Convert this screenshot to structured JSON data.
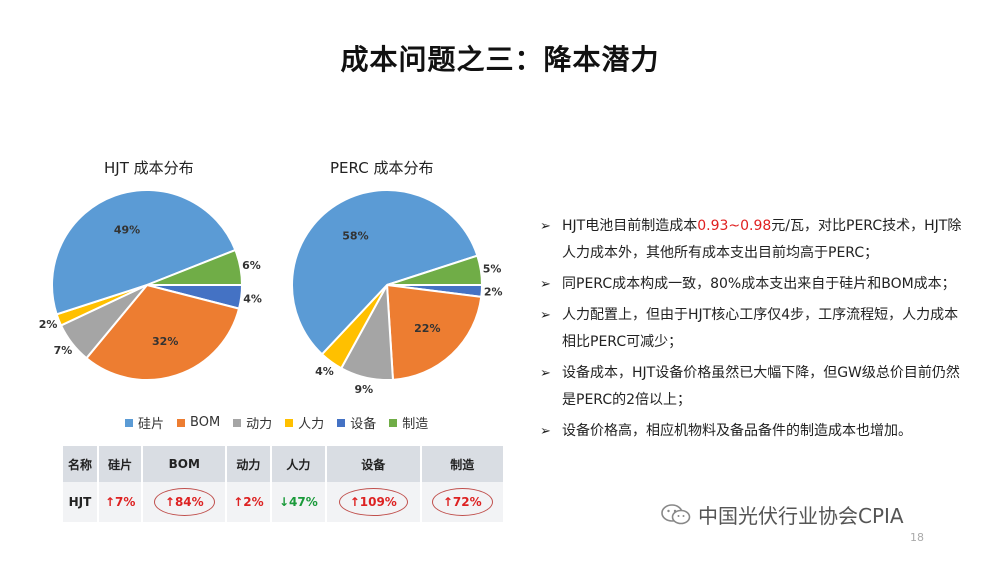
{
  "title": "成本问题之三：降本潜力",
  "colors": {
    "silicon": "#5b9bd5",
    "bom": "#ed7d31",
    "power": "#a5a5a5",
    "labor": "#ffc000",
    "equipment": "#4472c4",
    "manufacturing": "#70ad47"
  },
  "chart_data": [
    {
      "type": "pie",
      "title": "HJT 成本分布",
      "categories": [
        "硅片",
        "BOM",
        "动力",
        "人力",
        "设备",
        "制造"
      ],
      "values": [
        49,
        32,
        7,
        2,
        4,
        6
      ],
      "labels": [
        "49%",
        "32%",
        "7%",
        "2%",
        "4%",
        "6%"
      ]
    },
    {
      "type": "pie",
      "title": "PERC 成本分布",
      "categories": [
        "硅片",
        "BOM",
        "动力",
        "人力",
        "设备",
        "制造"
      ],
      "values": [
        58,
        22,
        9,
        4,
        2,
        5
      ],
      "labels": [
        "58%",
        "22%",
        "9%",
        "4%",
        "2%",
        "5%"
      ]
    }
  ],
  "legend": [
    "硅片",
    "BOM",
    "动力",
    "人力",
    "设备",
    "制造"
  ],
  "table": {
    "headers": [
      "名称",
      "硅片",
      "BOM",
      "动力",
      "人力",
      "设备",
      "制造"
    ],
    "row": [
      "HJT",
      "↑7%",
      "↑84%",
      "↑2%",
      "↓47%",
      "↑109%",
      "↑72%"
    ]
  },
  "bullets": {
    "b1_pre": "HJT电池目前制造成本",
    "b1_red": "0.93~0.98",
    "b1_post": "元/瓦，对比PERC技术，HJT除人力成本外，其他所有成本支出目前均高于PERC；",
    "b2": "同PERC成本构成一致，80%成本支出来自于硅片和BOM成本；",
    "b3": "人力配置上，但由于HJT核心工序仅4步，工序流程短，人力成本相比PERC可减少；",
    "b4": "设备成本，HJT设备价格虽然已大幅下降，但GW级总价目前仍然是PERC的2倍以上；",
    "b5": "设备价格高，相应机物料及备品备件的制造成本也增加。",
    "mark": "➢"
  },
  "watermark": "中国光伏行业协会CPIA",
  "page_number": "18"
}
